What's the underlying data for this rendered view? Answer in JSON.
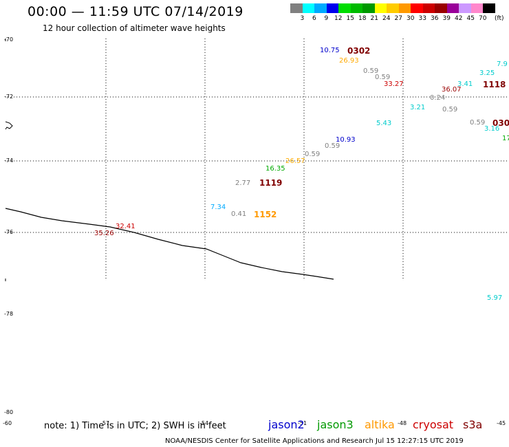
{
  "title": "00:00 — 11:59 UTC 07/14/2019",
  "subtitle": "12 hour collection of altimeter wave heights",
  "colorbar": {
    "colors": [
      "#808080",
      "#00ffff",
      "#00aaff",
      "#0000ee",
      "#00dd00",
      "#00bb00",
      "#009900",
      "#ffff00",
      "#ffcc00",
      "#ff9900",
      "#ff0000",
      "#cc0000",
      "#990000",
      "#990099",
      "#cc99ff",
      "#ff88cc",
      "#000000"
    ],
    "labels": [
      "3",
      "6",
      "9",
      "12",
      "15",
      "18",
      "21",
      "24",
      "27",
      "30",
      "33",
      "36",
      "39",
      "42",
      "45",
      "70"
    ],
    "unit": "(ft)"
  },
  "lat_labels": [
    "-70",
    "-72",
    "-74",
    "-76",
    "-78",
    "-80"
  ],
  "lon_labels": [
    "-60",
    "-57",
    "-54",
    "-51",
    "-48",
    "-45"
  ],
  "observations": [
    {
      "text": "10.75",
      "color": "#0000cc"
    },
    {
      "text": "0302",
      "color": "#800000"
    },
    {
      "text": "26.93",
      "color": "#ffaa00"
    },
    {
      "text": "0.59",
      "color": "#808080"
    },
    {
      "text": "0.59",
      "color": "#808080"
    },
    {
      "text": "33.27",
      "color": "#cc0000"
    },
    {
      "text": "36.07",
      "color": "#990000"
    },
    {
      "text": "3.41",
      "color": "#00cccc"
    },
    {
      "text": "1118",
      "color": "#800000"
    },
    {
      "text": "3.25",
      "color": "#00cccc"
    },
    {
      "text": "7.9",
      "color": "#00cccc"
    },
    {
      "text": "0.24",
      "color": "#808080"
    },
    {
      "text": "0.59",
      "color": "#808080"
    },
    {
      "text": "3.21",
      "color": "#00cccc"
    },
    {
      "text": "5.43",
      "color": "#00cccc"
    },
    {
      "text": "0.59",
      "color": "#808080"
    },
    {
      "text": "3.16",
      "color": "#00cccc"
    },
    {
      "text": "030",
      "color": "#800000"
    },
    {
      "text": "17",
      "color": "#00aa00"
    },
    {
      "text": "10.93",
      "color": "#0000cc"
    },
    {
      "text": "0.59",
      "color": "#808080"
    },
    {
      "text": "0.59",
      "color": "#808080"
    },
    {
      "text": "26.57",
      "color": "#ffaa00"
    },
    {
      "text": "16.35",
      "color": "#00aa00"
    },
    {
      "text": "2.77",
      "color": "#808080"
    },
    {
      "text": "1119",
      "color": "#800000"
    },
    {
      "text": "7.34",
      "color": "#00aaff"
    },
    {
      "text": "0.41",
      "color": "#808080"
    },
    {
      "text": "1152",
      "color": "#ff9900"
    },
    {
      "text": "32.41",
      "color": "#cc0000"
    },
    {
      "text": "35.26",
      "color": "#990000"
    },
    {
      "text": "5.97",
      "color": "#00cccc"
    }
  ],
  "note": "note: 1) Time is in UTC; 2) SWH is in feet",
  "satellites": [
    {
      "name": "jason2",
      "color": "#0000cc"
    },
    {
      "name": "jason3",
      "color": "#009900"
    },
    {
      "name": "altika",
      "color": "#ff9900"
    },
    {
      "name": "cryosat",
      "color": "#cc0000"
    },
    {
      "name": "s3a",
      "color": "#800000"
    }
  ],
  "credit": "NOAA/NESDIS Center for Satellite Applications and Research    Jul 15 12:27:15 UTC 2019"
}
